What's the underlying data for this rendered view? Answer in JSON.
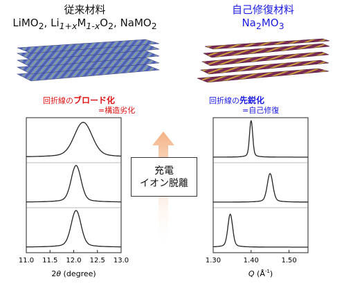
{
  "left_header": {
    "title": "従来材料",
    "formula_parts": [
      "LiMO",
      "2",
      ", Li",
      "1+x",
      "M",
      "1-x",
      "O",
      "2",
      ", NaMO",
      "2"
    ]
  },
  "right_header": {
    "title": "自己修復材料",
    "formula_parts": [
      "Na",
      "2",
      "MO",
      "3"
    ]
  },
  "left_note": {
    "prefix": "回折線の",
    "emphasis": "ブロード化",
    "line2": "=構造劣化"
  },
  "right_note": {
    "prefix": "回折線の",
    "emphasis": "先鋭化",
    "line2": "=自己修復"
  },
  "center_box": {
    "line1": "充電",
    "line2": "イオン脱離"
  },
  "colors": {
    "blue": "#1c1ce6",
    "red": "#e01212",
    "arrow": "#f4b183"
  },
  "chart_data": [
    {
      "type": "line",
      "xlabel": "2θ (degree)",
      "xlabel_parts": [
        "2",
        "θ",
        " (degree)"
      ],
      "xticks": [
        "11.0",
        "11.5",
        "12.0",
        "12.5",
        "13.0"
      ],
      "xlim": [
        11.0,
        13.0
      ],
      "series": [
        {
          "peak_center": 12.2,
          "peak_width": 0.18,
          "relative_height": 0.95
        },
        {
          "peak_center": 12.05,
          "peak_width": 0.1,
          "relative_height": 1.0
        },
        {
          "peak_center": 12.05,
          "peak_width": 0.1,
          "relative_height": 1.0
        }
      ]
    },
    {
      "type": "line",
      "xlabel": "Q (Å-1)",
      "xlabel_parts": [
        "Q",
        " (Å",
        "-1",
        ")"
      ],
      "xticks": [
        "1.30",
        "1.40",
        "1.50"
      ],
      "xlim": [
        1.3,
        1.55
      ],
      "series": [
        {
          "peak_center": 1.4,
          "peak_width": 0.004,
          "relative_height": 1.0
        },
        {
          "peak_center": 1.45,
          "peak_width": 0.007,
          "relative_height": 0.78
        },
        {
          "peak_center": 1.345,
          "peak_width": 0.006,
          "relative_height": 0.9
        }
      ]
    }
  ]
}
